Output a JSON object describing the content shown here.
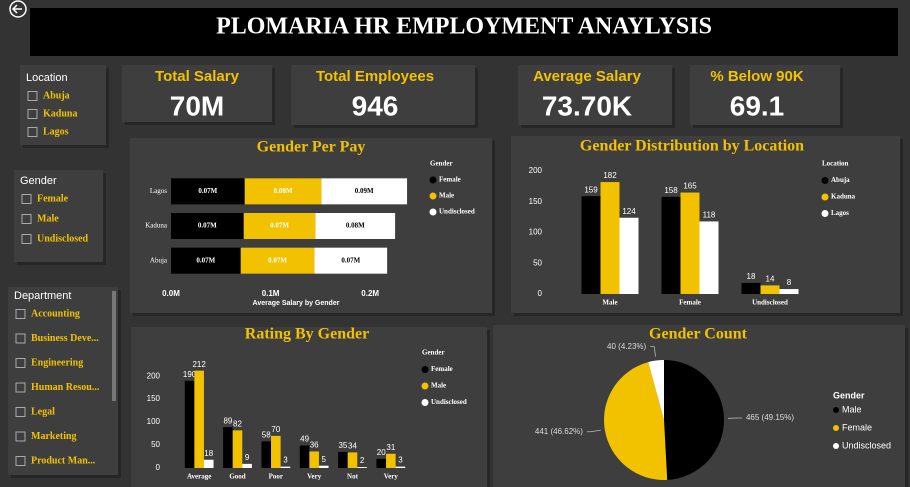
{
  "header": {
    "title": "PLOMARIA HR EMPLOYMENT ANAYLYSIS"
  },
  "kpis": [
    {
      "label": "Total Salary",
      "value": "70M"
    },
    {
      "label": "Total Employees",
      "value": "946"
    },
    {
      "label": "Average Salary",
      "value": "73.70K"
    },
    {
      "label": "% Below 90K",
      "value": "69.1"
    }
  ],
  "slicers": [
    {
      "title": "Location",
      "items": [
        "Abuja",
        "Kaduna",
        "Lagos"
      ]
    },
    {
      "title": "Gender",
      "items": [
        "Female",
        "Male",
        "Undisclosed"
      ]
    },
    {
      "title": "Department",
      "items": [
        "Accounting",
        "Business Deve...",
        "Engineering",
        "Human Resou...",
        "Legal",
        "Marketing",
        "Product Man..."
      ]
    }
  ],
  "chart_data": [
    {
      "type": "bar",
      "orientation": "horizontal",
      "stacked": true,
      "title": "Gender Per Pay",
      "xlabel": "Average Salary by Gender",
      "legend_title": "Gender",
      "legend": "right",
      "categories": [
        "Lagos",
        "Kaduna",
        "Abuja"
      ],
      "series": [
        {
          "name": "Female",
          "color": "#000000",
          "values": [
            74000,
            73000,
            70000
          ],
          "value_labels": [
            "0.07M",
            "0.07M",
            "0.07M"
          ]
        },
        {
          "name": "Male",
          "color": "#f2c200",
          "values": [
            77000,
            72000,
            74000
          ],
          "value_labels": [
            "0.08M",
            "0.07M",
            "0.07M"
          ]
        },
        {
          "name": "Undisclosed",
          "color": "#ffffff",
          "values": [
            86000,
            80000,
            73000
          ],
          "value_labels": [
            "0.09M",
            "0.08M",
            "0.07M"
          ]
        }
      ],
      "xlim": [
        0,
        250000
      ],
      "xticks": [
        {
          "value": 0,
          "label": "0.0M"
        },
        {
          "value": 100000,
          "label": "0.1M"
        },
        {
          "value": 200000,
          "label": "0.2M"
        }
      ]
    },
    {
      "type": "bar",
      "orientation": "vertical",
      "stacked": false,
      "title": "Gender Distribution by Location",
      "legend_title": "Location",
      "legend": "right",
      "categories": [
        "Male",
        "Female",
        "Undisclosed"
      ],
      "series": [
        {
          "name": "Abuja",
          "color": "#000000",
          "values": [
            159,
            158,
            18
          ]
        },
        {
          "name": "Kaduna",
          "color": "#f2c200",
          "values": [
            182,
            165,
            14
          ]
        },
        {
          "name": "Lagos",
          "color": "#ffffff",
          "values": [
            124,
            118,
            8
          ]
        }
      ],
      "ylim": [
        0,
        200
      ],
      "yticks": [
        0,
        50,
        100,
        150,
        200
      ]
    },
    {
      "type": "bar",
      "orientation": "vertical",
      "stacked": false,
      "title": "Rating By Gender",
      "legend_title": "Gender",
      "legend": "right",
      "categories": [
        "Average",
        "Good",
        "Poor",
        "Very",
        "Not",
        "Very"
      ],
      "series": [
        {
          "name": "Female",
          "color": "#000000",
          "values": [
            190,
            89,
            58,
            49,
            35,
            20
          ]
        },
        {
          "name": "Male",
          "color": "#f2c200",
          "values": [
            212,
            82,
            70,
            36,
            34,
            31
          ]
        },
        {
          "name": "Undisclosed",
          "color": "#ffffff",
          "values": [
            18,
            9,
            3,
            5,
            2,
            3
          ]
        }
      ],
      "ylim": [
        0,
        220
      ],
      "yticks": [
        0,
        50,
        100,
        150,
        200
      ]
    },
    {
      "type": "pie",
      "title": "Gender Count",
      "legend_title": "Gender",
      "legend": "right",
      "categories": [
        "Male",
        "Female",
        "Undisclosed"
      ],
      "values": [
        465,
        441,
        40
      ],
      "value_labels": [
        "465 (49.15%)",
        "441 (46.62%)",
        "40 (4.23%)"
      ],
      "colors": [
        "#000000",
        "#f2c200",
        "#ffffff"
      ]
    }
  ]
}
